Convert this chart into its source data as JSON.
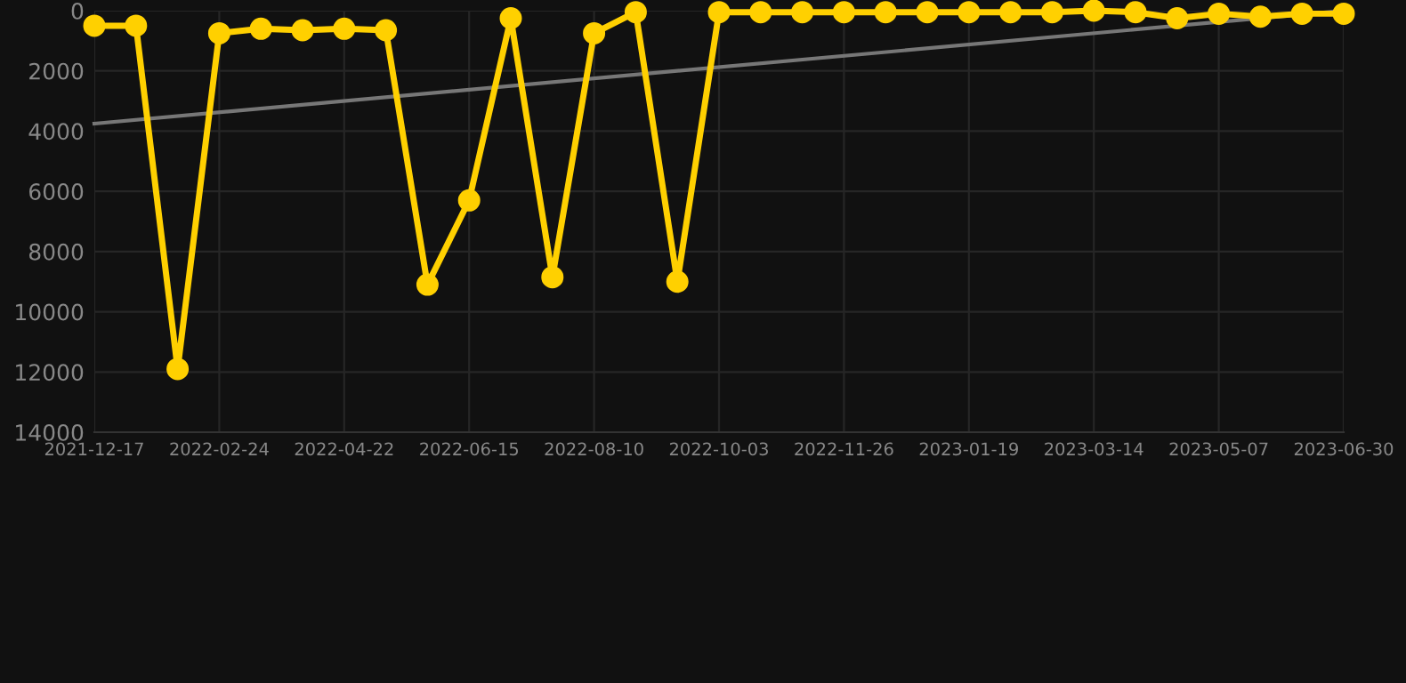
{
  "chart_data": {
    "type": "line",
    "categories": [
      "2021-12-17",
      null,
      null,
      "2022-02-24",
      null,
      null,
      "2022-04-22",
      null,
      null,
      "2022-06-15",
      null,
      null,
      "2022-08-10",
      null,
      null,
      "2022-10-03",
      null,
      null,
      "2022-11-26",
      null,
      null,
      "2023-01-19",
      null,
      null,
      "2023-03-14",
      null,
      null,
      "2023-05-07",
      null,
      null,
      "2023-06-30"
    ],
    "series": [
      {
        "color": "#ffd000",
        "marker": "circle",
        "values": [
          500,
          500,
          11900,
          750,
          600,
          650,
          600,
          650,
          9100,
          6300,
          250,
          8850,
          750,
          50,
          9000,
          50,
          50,
          50,
          50,
          50,
          50,
          50,
          50,
          50,
          0,
          50,
          250,
          100,
          200,
          100,
          100
        ]
      },
      {
        "color": "#777777",
        "marker": "none",
        "values": [
          3750,
          null,
          null,
          null,
          null,
          null,
          null,
          null,
          null,
          null,
          null,
          null,
          null,
          null,
          null,
          null,
          null,
          null,
          null,
          null,
          null,
          null,
          null,
          null,
          null,
          null,
          null,
          null,
          null,
          null,
          0
        ]
      }
    ],
    "ylim": [
      14000,
      0
    ],
    "yticks": [
      0,
      2000,
      4000,
      6000,
      8000,
      10000,
      12000,
      14000
    ],
    "grid": true,
    "line_style": "solid"
  }
}
